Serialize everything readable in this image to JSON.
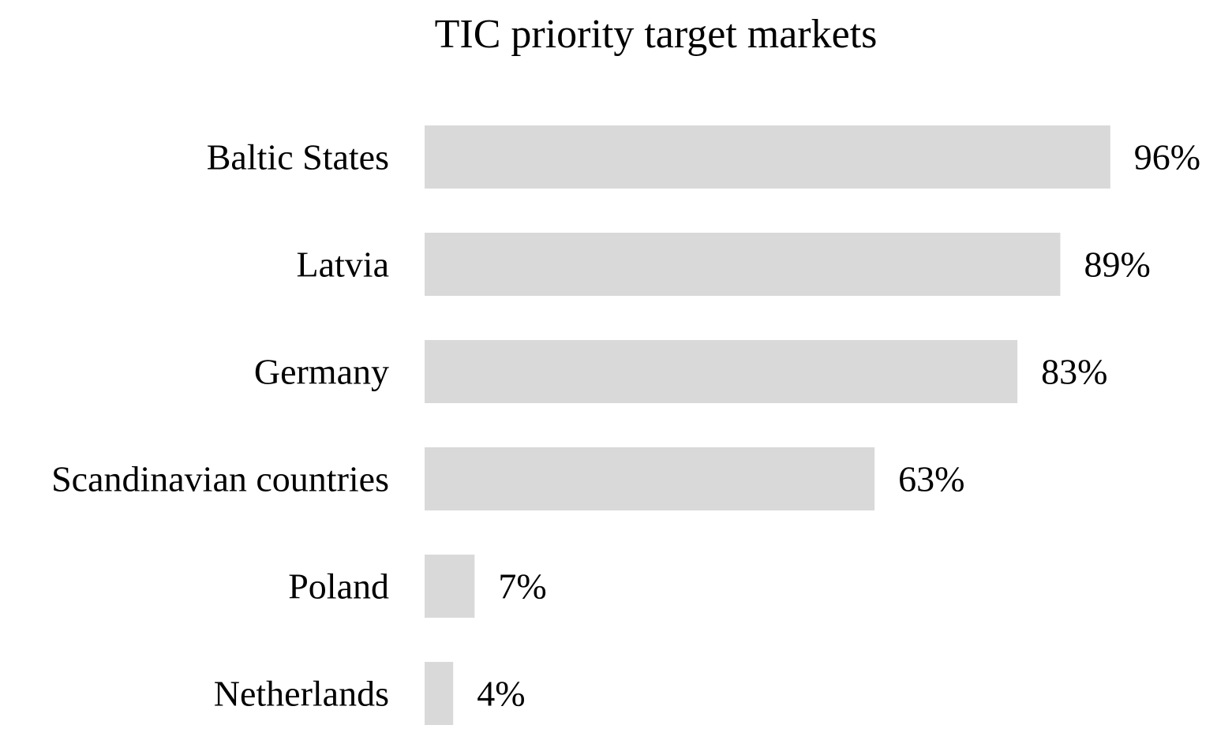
{
  "chart_data": {
    "type": "bar",
    "orientation": "horizontal",
    "title": "TIC priority target markets",
    "categories": [
      "Baltic States",
      "Latvia",
      "Germany",
      "Scandinavian countries",
      "Poland",
      "Netherlands"
    ],
    "values": [
      96,
      89,
      83,
      63,
      7,
      4
    ],
    "value_labels": [
      "96%",
      "89%",
      "83%",
      "63%",
      "7%",
      "4%"
    ],
    "value_unit": "%",
    "xlabel": "",
    "ylabel": "",
    "xlim": [
      0,
      100
    ],
    "grid": false,
    "legend": "none",
    "axes_visible": false,
    "bar_color": "#d9d9d9",
    "text_color": "#000000"
  }
}
